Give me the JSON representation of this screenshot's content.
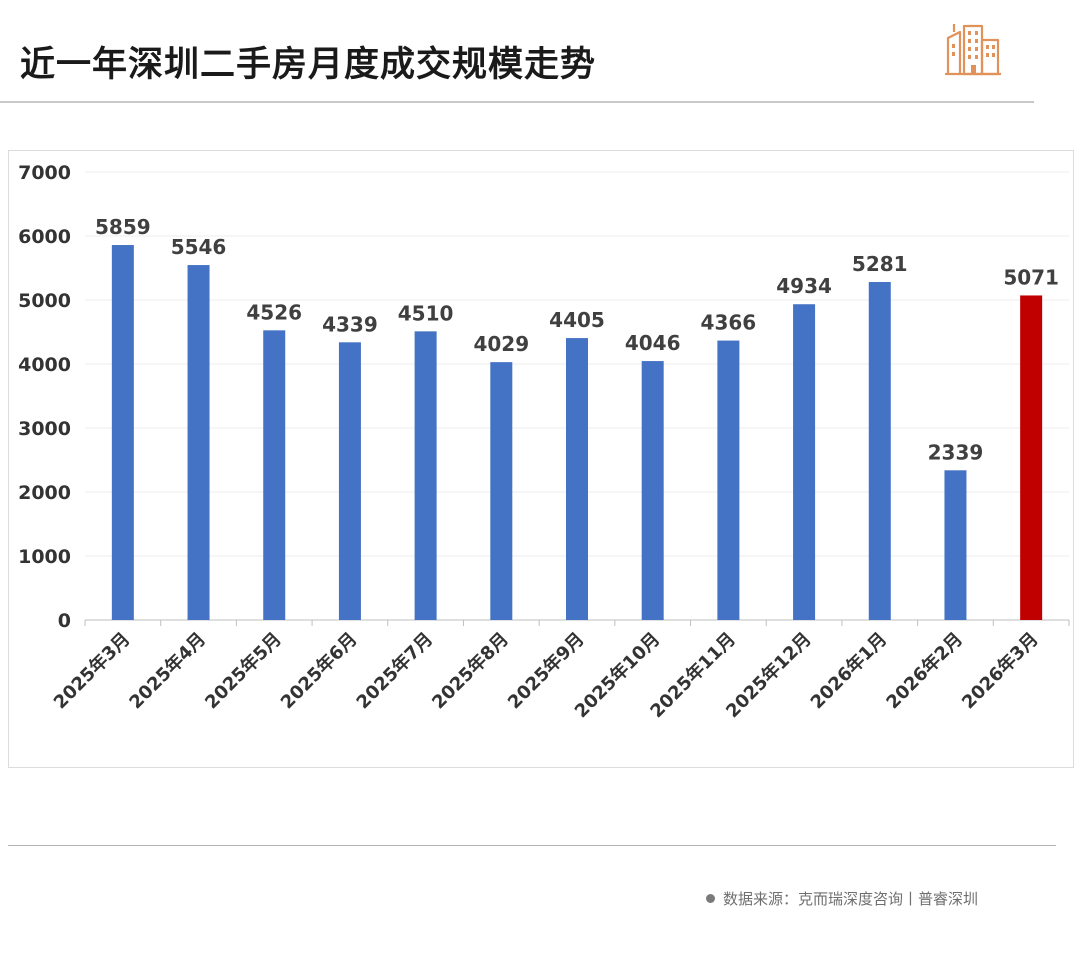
{
  "header": {
    "title": "近一年深圳二手房月度成交规模走势"
  },
  "logo": {
    "icon": "buildings-icon",
    "color": "#e0925a"
  },
  "source": {
    "text": "数据来源：克而瑞深度咨询丨普睿深圳"
  },
  "chart_data": {
    "type": "bar",
    "categories": [
      "2025年3月",
      "2025年4月",
      "2025年5月",
      "2025年6月",
      "2025年7月",
      "2025年8月",
      "2025年9月",
      "2025年10月",
      "2025年11月",
      "2025年12月",
      "2026年1月",
      "2026年2月",
      "2026年3月"
    ],
    "values": [
      5859,
      5546,
      4526,
      4339,
      4510,
      4029,
      4405,
      4046,
      4366,
      4934,
      5281,
      2339,
      5071
    ],
    "colors": [
      "#4472c4",
      "#4472c4",
      "#4472c4",
      "#4472c4",
      "#4472c4",
      "#4472c4",
      "#4472c4",
      "#4472c4",
      "#4472c4",
      "#4472c4",
      "#4472c4",
      "#4472c4",
      "#c00000"
    ],
    "yticks": [
      0,
      1000,
      2000,
      3000,
      4000,
      5000,
      6000,
      7000
    ],
    "ylim": [
      0,
      7000
    ],
    "grid": true,
    "legend": "none",
    "data_labels": true
  }
}
